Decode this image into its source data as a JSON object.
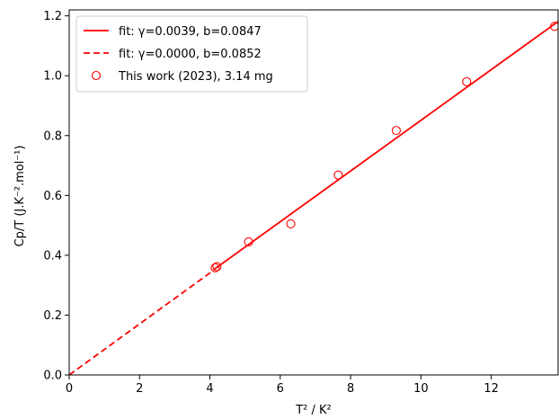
{
  "chart_data": {
    "type": "scatter",
    "xlabel": "T² / K²",
    "ylabel": "Cp/T (J.K⁻².mol⁻¹)",
    "xlim": [
      0,
      13.9
    ],
    "ylim": [
      0,
      1.22
    ],
    "xticks": [
      0,
      2,
      4,
      6,
      8,
      10,
      12
    ],
    "yticks": [
      0.0,
      0.2,
      0.4,
      0.6,
      0.8,
      1.0,
      1.2
    ],
    "xtick_labels": [
      "0",
      "2",
      "4",
      "6",
      "8",
      "10",
      "12"
    ],
    "ytick_labels": [
      "0.0",
      "0.2",
      "0.4",
      "0.6",
      "0.8",
      "1.0",
      "1.2"
    ],
    "grid": false,
    "legend_position": "top-left",
    "color": "#ff0000",
    "series": [
      {
        "name": "fit: γ=0.0039, b=0.0847",
        "kind": "line",
        "style": "solid",
        "x": [
          4.1,
          13.9
        ],
        "y": [
          0.3512,
          1.1812
        ]
      },
      {
        "name": "fit: γ=0.0000, b=0.0852",
        "kind": "line",
        "style": "dashed",
        "x": [
          0,
          4.1
        ],
        "y": [
          0.0,
          0.3493
        ]
      },
      {
        "name": "This work (2023), 3.14 mg",
        "kind": "scatter",
        "marker": "open-circle",
        "x": [
          4.15,
          4.2,
          5.1,
          6.3,
          7.65,
          9.3,
          11.3,
          13.8
        ],
        "y": [
          0.358,
          0.362,
          0.445,
          0.505,
          0.668,
          0.817,
          0.98,
          1.165
        ]
      }
    ]
  }
}
